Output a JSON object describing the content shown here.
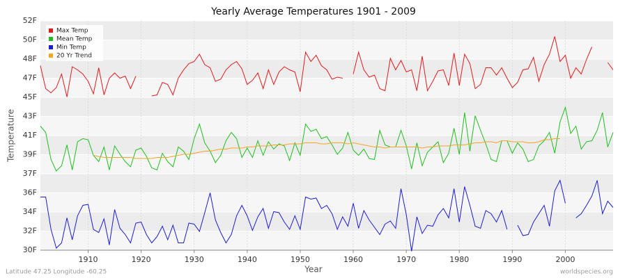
{
  "chart_data": {
    "type": "line",
    "title": "Yearly Average Temperatures 1901 - 2009",
    "xlabel": "Year",
    "ylabel": "Temperature",
    "footer_left": "Latitude 47.25 Longitude -60.25",
    "footer_right": "worldspecies.org",
    "legend": "top-left",
    "grid": true,
    "xlim": [
      1901,
      2009
    ],
    "xticks": [
      1910,
      1920,
      1930,
      1940,
      1950,
      1960,
      1970,
      1980,
      1990,
      2000
    ],
    "ylim": [
      30,
      52
    ],
    "yticks": [
      {
        "value": 30,
        "label": "30F"
      },
      {
        "value": 31.83,
        "label": "32F"
      },
      {
        "value": 33.67,
        "label": "34F"
      },
      {
        "value": 35.5,
        "label": "36F"
      },
      {
        "value": 37.33,
        "label": "37F"
      },
      {
        "value": 39.17,
        "label": "39F"
      },
      {
        "value": 41,
        "label": "41F"
      },
      {
        "value": 42.83,
        "label": "43F"
      },
      {
        "value": 44.67,
        "label": "45F"
      },
      {
        "value": 46.5,
        "label": "47F"
      },
      {
        "value": 48.33,
        "label": "48F"
      },
      {
        "value": 50.17,
        "label": "50F"
      },
      {
        "value": 52,
        "label": "52F"
      }
    ],
    "x": [
      1901,
      1902,
      1903,
      1904,
      1905,
      1906,
      1907,
      1908,
      1909,
      1910,
      1911,
      1912,
      1913,
      1914,
      1915,
      1916,
      1917,
      1918,
      1919,
      1920,
      1921,
      1922,
      1923,
      1924,
      1925,
      1926,
      1927,
      1928,
      1929,
      1930,
      1931,
      1932,
      1933,
      1934,
      1935,
      1936,
      1937,
      1938,
      1939,
      1940,
      1941,
      1942,
      1943,
      1944,
      1945,
      1946,
      1947,
      1948,
      1949,
      1950,
      1951,
      1952,
      1953,
      1954,
      1955,
      1956,
      1957,
      1958,
      1959,
      1960,
      1961,
      1962,
      1963,
      1964,
      1965,
      1966,
      1967,
      1968,
      1969,
      1970,
      1971,
      1972,
      1973,
      1974,
      1975,
      1976,
      1977,
      1978,
      1979,
      1980,
      1981,
      1982,
      1983,
      1984,
      1985,
      1986,
      1987,
      1988,
      1989,
      1990,
      1991,
      1992,
      1993,
      1994,
      1995,
      1996,
      1997,
      1998,
      1999,
      2000,
      2001,
      2002,
      2003,
      2004,
      2005,
      2006,
      2007,
      2008,
      2009
    ],
    "series": [
      {
        "name": "Max Temp",
        "color": "#e31a1c",
        "values": [
          47.7,
          45.5,
          45.1,
          45.6,
          46.9,
          44.7,
          47.6,
          47.3,
          46.9,
          46.2,
          45.0,
          47.5,
          44.9,
          46.5,
          47.0,
          46.5,
          46.7,
          45.5,
          46.7,
          null,
          null,
          44.8,
          44.9,
          46.1,
          45.9,
          44.9,
          46.5,
          47.3,
          47.9,
          48.1,
          48.8,
          47.8,
          47.5,
          46.2,
          46.4,
          47.3,
          47.8,
          48.1,
          47.4,
          45.9,
          46.3,
          47.0,
          45.5,
          47.3,
          45.9,
          47.1,
          47.6,
          47.3,
          47.1,
          45.2,
          49.0,
          48.1,
          48.7,
          47.7,
          47.3,
          46.4,
          46.6,
          46.5,
          null,
          46.9,
          49.0,
          47.3,
          46.6,
          46.8,
          45.5,
          45.3,
          48.4,
          47.3,
          48.2,
          47.1,
          47.3,
          45.3,
          48.6,
          45.3,
          46.2,
          47.2,
          47.3,
          45.8,
          48.9,
          45.8,
          48.8,
          47.9,
          45.5,
          45.9,
          47.5,
          47.5,
          46.8,
          47.5,
          46.5,
          45.6,
          46.1,
          47.3,
          47.4,
          48.5,
          46.2,
          47.8,
          48.8,
          50.5,
          48.1,
          48.7,
          46.5,
          47.5,
          46.9,
          48.3,
          49.5,
          null,
          null,
          48.0,
          47.3
        ]
      },
      {
        "name": "Mean Temp",
        "color": "#1fbf1f",
        "values": [
          41.9,
          41.3,
          38.7,
          37.6,
          38.1,
          40.1,
          37.7,
          40.4,
          40.7,
          40.6,
          39.1,
          38.5,
          39.9,
          37.7,
          40.0,
          39.2,
          38.5,
          38.0,
          39.6,
          39.8,
          39.0,
          37.9,
          37.7,
          39.3,
          38.5,
          38.0,
          39.9,
          39.5,
          38.7,
          40.7,
          42.1,
          40.3,
          39.5,
          38.4,
          39.1,
          40.5,
          41.3,
          40.7,
          38.9,
          39.8,
          38.9,
          40.5,
          39.1,
          40.4,
          39.7,
          40.2,
          40.0,
          38.6,
          40.3,
          39.1,
          42.1,
          41.4,
          41.6,
          40.7,
          40.9,
          40.1,
          39.2,
          39.8,
          41.3,
          39.6,
          39.1,
          39.7,
          38.8,
          38.7,
          41.5,
          40.1,
          39.9,
          39.9,
          41.5,
          40.0,
          37.8,
          40.3,
          38.1,
          39.4,
          39.9,
          40.4,
          38.4,
          39.3,
          41.7,
          39.2,
          43.2,
          39.5,
          42.9,
          41.5,
          40.2,
          38.7,
          38.5,
          40.5,
          40.5,
          39.3,
          40.3,
          39.7,
          38.5,
          38.7,
          40.0,
          40.5,
          41.3,
          39.3,
          42.3,
          43.7,
          41.2,
          41.9,
          39.7,
          40.4,
          40.5,
          41.5,
          43.2,
          39.9,
          41.3
        ]
      },
      {
        "name": "Min Temp",
        "color": "#1c1cd6",
        "values": [
          35.1,
          35.1,
          32.0,
          30.2,
          30.7,
          33.1,
          31.0,
          33.3,
          34.3,
          34.4,
          32.0,
          31.7,
          33.0,
          30.5,
          33.9,
          32.1,
          31.5,
          30.7,
          32.6,
          32.7,
          31.5,
          30.7,
          31.3,
          32.3,
          31.0,
          32.4,
          30.7,
          30.7,
          32.6,
          32.5,
          31.8,
          33.6,
          35.5,
          32.9,
          31.7,
          30.7,
          31.5,
          33.3,
          34.3,
          33.3,
          31.9,
          33.2,
          34.0,
          32.1,
          33.7,
          33.6,
          32.7,
          32.0,
          33.3,
          32.0,
          35.1,
          34.9,
          35.0,
          34.0,
          34.3,
          33.5,
          32.0,
          33.2,
          32.3,
          34.5,
          32.1,
          33.8,
          32.9,
          32.2,
          31.5,
          32.5,
          32.8,
          32.1,
          35.9,
          33.4,
          29.9,
          33.2,
          31.6,
          32.4,
          32.3,
          33.4,
          34.0,
          33.1,
          35.9,
          32.7,
          36.1,
          34.3,
          32.3,
          32.1,
          33.8,
          33.5,
          32.7,
          33.8,
          32.0,
          null,
          32.4,
          31.4,
          31.5,
          32.7,
          33.5,
          34.3,
          32.3,
          35.7,
          36.7,
          34.5,
          null,
          33.1,
          33.5,
          34.3,
          35.2,
          36.7,
          33.5,
          34.7,
          34.1
        ]
      },
      {
        "name": "20 Yr Trend",
        "color": "#f5a623",
        "values": [
          null,
          null,
          null,
          null,
          null,
          null,
          null,
          null,
          null,
          null,
          39.1,
          39.0,
          38.9,
          38.9,
          38.9,
          38.9,
          38.9,
          38.9,
          38.8,
          38.8,
          38.8,
          38.8,
          38.9,
          38.9,
          38.9,
          39.0,
          39.1,
          39.2,
          39.2,
          39.3,
          39.4,
          39.5,
          39.5,
          39.6,
          39.7,
          39.7,
          39.8,
          39.8,
          39.8,
          39.9,
          39.9,
          40.0,
          40.0,
          40.0,
          40.1,
          40.1,
          40.1,
          40.2,
          40.2,
          40.2,
          40.3,
          40.3,
          40.3,
          40.2,
          40.2,
          40.3,
          40.3,
          40.3,
          40.2,
          40.3,
          40.2,
          40.1,
          40.0,
          39.9,
          39.9,
          39.8,
          39.9,
          39.9,
          39.9,
          39.9,
          39.9,
          39.9,
          39.8,
          39.9,
          39.9,
          40.0,
          40.0,
          40.0,
          40.1,
          40.1,
          40.1,
          40.2,
          40.3,
          40.3,
          40.4,
          40.4,
          40.3,
          40.5,
          40.5,
          40.4,
          40.4,
          40.4,
          40.3,
          40.3,
          40.4,
          40.6,
          40.6,
          40.7,
          40.7,
          null,
          null,
          null,
          null,
          null,
          null,
          null,
          null,
          null,
          null
        ]
      }
    ]
  }
}
